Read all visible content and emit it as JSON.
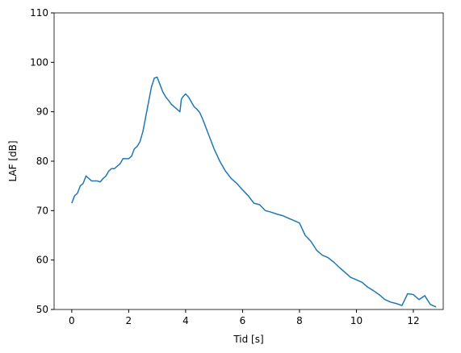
{
  "chart_data": {
    "type": "line",
    "x_label": "Tid [s]",
    "y_label": "LAF [dB]",
    "x": [
      0,
      0.1,
      0.2,
      0.3,
      0.4,
      0.5,
      0.6,
      0.7,
      0.8,
      0.9,
      1.0,
      1.1,
      1.2,
      1.3,
      1.4,
      1.5,
      1.6,
      1.7,
      1.8,
      1.9,
      2.0,
      2.1,
      2.2,
      2.3,
      2.4,
      2.5,
      2.6,
      2.7,
      2.8,
      2.9,
      3.0,
      3.1,
      3.2,
      3.3,
      3.4,
      3.5,
      3.6,
      3.7,
      3.8,
      3.85,
      3.9,
      4.0,
      4.1,
      4.2,
      4.3,
      4.4,
      4.5,
      4.6,
      4.7,
      4.8,
      4.9,
      5.0,
      5.2,
      5.4,
      5.6,
      5.8,
      6.0,
      6.2,
      6.4,
      6.6,
      6.8,
      7.0,
      7.2,
      7.4,
      7.6,
      7.8,
      8.0,
      8.2,
      8.4,
      8.6,
      8.8,
      9.0,
      9.2,
      9.4,
      9.6,
      9.8,
      10.0,
      10.2,
      10.4,
      10.6,
      10.8,
      11.0,
      11.2,
      11.4,
      11.6,
      11.8,
      12.0,
      12.2,
      12.4,
      12.6,
      12.8
    ],
    "series": [
      {
        "color": "#1f77b4",
        "values": [
          71.5,
          73,
          73.5,
          75,
          75.5,
          77,
          76.5,
          76,
          76,
          76,
          75.8,
          76.5,
          77,
          78,
          78.5,
          78.5,
          79,
          79.5,
          80.5,
          80.5,
          80.5,
          81,
          82.5,
          83,
          84,
          86,
          89,
          92,
          95,
          96.8,
          97,
          95.5,
          94,
          93,
          92.3,
          91.5,
          91,
          90.5,
          90,
          92.5,
          93,
          93.6,
          93,
          92,
          91,
          90.5,
          89.8,
          88.5,
          87,
          85.5,
          84,
          82.5,
          80,
          78,
          76.5,
          75.5,
          74.2,
          73,
          71.5,
          71.2,
          70,
          69.7,
          69.3,
          69,
          68.5,
          68,
          67.5,
          65,
          63.8,
          62,
          61,
          60.5,
          59.6,
          58.5,
          57.5,
          56.5,
          56,
          55.5,
          54.5,
          53.8,
          53,
          52,
          51.5,
          51.2,
          50.8,
          53.2,
          53,
          52,
          52.8,
          51,
          50.5
        ]
      }
    ],
    "xlim": [
      -0.62,
      13.05
    ],
    "xticks": [
      0,
      2,
      4,
      6,
      8,
      10,
      12
    ],
    "ylim": [
      50,
      110
    ],
    "yticks": [
      50,
      60,
      70,
      80,
      90,
      100,
      110
    ]
  }
}
